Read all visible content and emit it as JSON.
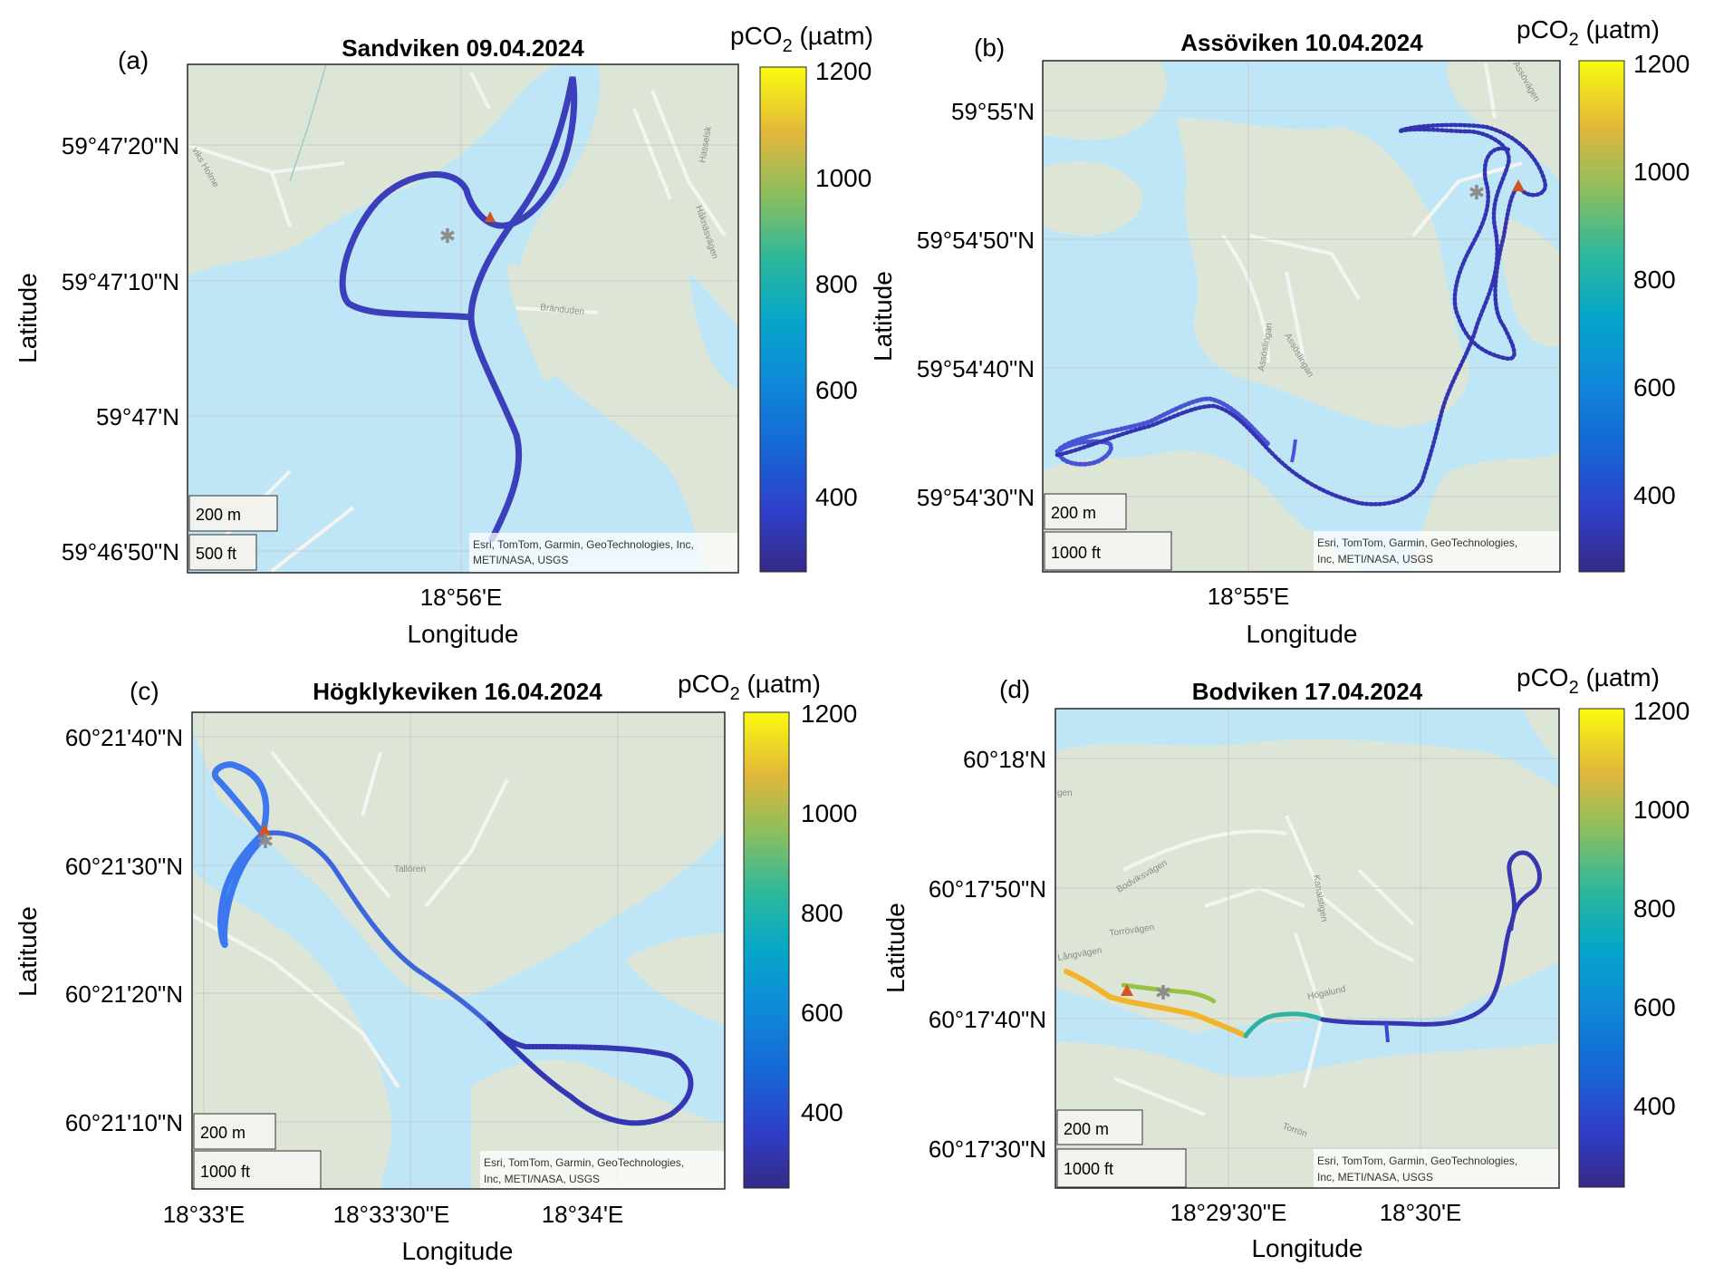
{
  "colorbar": {
    "label": "pCO",
    "label_sub": "2",
    "label_unit": " (µatm)",
    "range": [
      250,
      1200
    ],
    "ticks": [
      "1200",
      "1000",
      "800",
      "600",
      "400"
    ],
    "tick_values": [
      1200,
      1000,
      800,
      600,
      400
    ]
  },
  "colors": {
    "water": "#bfe6f7",
    "land": "#dde6d6",
    "road": "#f4f4f2",
    "start_marker": "#d4541e",
    "end_marker": "#8c8c8c"
  },
  "axis_label_x": "Longitude",
  "axis_label_y": "Latitude",
  "panels": [
    {
      "letter": "(a)",
      "title": "Sandviken 09.04.2024",
      "yticks": [
        "59°47'20\"N",
        "59°47'10\"N",
        "59°47'N",
        "59°46'50\"N"
      ],
      "xticks": [
        "18°56'E"
      ],
      "scale_m": "200 m",
      "scale_ft": "500 ft",
      "attribution": [
        "Esri, TomTom, Garmin, GeoTechnologies, Inc,",
        "METI/NASA, USGS"
      ],
      "place_labels": [
        "Bränduden",
        "Håknäsvägen",
        "Hasselsk",
        "viks Holme"
      ],
      "pco2_range": [
        300,
        390
      ]
    },
    {
      "letter": "(b)",
      "title": "Assöviken 10.04.2024",
      "yticks": [
        "59°55'N",
        "59°54'50\"N",
        "59°54'40\"N",
        "59°54'30\"N"
      ],
      "xticks": [
        "18°55'E"
      ],
      "scale_m": "200 m",
      "scale_ft": "1000 ft",
      "attribution": [
        "Esri, TomTom, Garmin, GeoTechnologies,",
        "Inc, METI/NASA, USGS"
      ],
      "place_labels": [
        "Assöslingan",
        "Assöslingan",
        "Assövägen"
      ],
      "pco2_range": [
        310,
        400
      ]
    },
    {
      "letter": "(c)",
      "title": "Högklykeviken 16.04.2024",
      "yticks": [
        "60°21'40\"N",
        "60°21'30\"N",
        "60°21'20\"N",
        "60°21'10\"N"
      ],
      "xticks": [
        "18°33'E",
        "18°33'30\"E",
        "18°34'E"
      ],
      "scale_m": "200 m",
      "scale_ft": "1000 ft",
      "attribution": [
        "Esri, TomTom, Garmin, GeoTechnologies,",
        "Inc, METI/NASA, USGS"
      ],
      "place_labels": [
        "Tallören"
      ],
      "pco2_range": [
        310,
        430
      ]
    },
    {
      "letter": "(d)",
      "title": "Bodviken 17.04.2024",
      "yticks": [
        "60°18'N",
        "60°17'50\"N",
        "60°17'40\"N",
        "60°17'30\"N"
      ],
      "xticks": [
        "18°29'30\"E",
        "18°30'E"
      ],
      "scale_m": "200 m",
      "scale_ft": "1000 ft",
      "attribution": [
        "Esri, TomTom, Garmin, GeoTechnologies,",
        "Inc, METI/NASA, USGS"
      ],
      "place_labels": [
        "Bodviksvägen",
        "Torrövägen",
        "Långvägen",
        "Kanalstigen",
        "Högalund",
        "Torrön",
        "gen"
      ],
      "pco2_range": [
        310,
        1120
      ]
    }
  ]
}
